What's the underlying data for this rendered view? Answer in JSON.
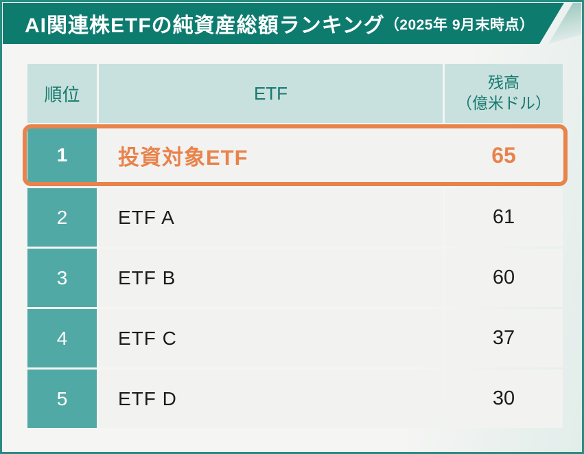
{
  "title_bar": {
    "title": "AI関連株ETFの純資産総額ランキング",
    "date_note": "（2025年 9月末時点）"
  },
  "table": {
    "columns": {
      "rank": "順位",
      "name": "ETF",
      "value_line1": "残高",
      "value_line2": "（億米ドル）"
    },
    "rows": [
      {
        "rank": "1",
        "name": "投資対象ETF",
        "value": "65",
        "highlighted": true
      },
      {
        "rank": "2",
        "name": "ETF A",
        "value": "61",
        "highlighted": false
      },
      {
        "rank": "3",
        "name": "ETF B",
        "value": "60",
        "highlighted": false
      },
      {
        "rank": "4",
        "name": "ETF C",
        "value": "37",
        "highlighted": false
      },
      {
        "rank": "5",
        "name": "ETF D",
        "value": "30",
        "highlighted": false
      }
    ]
  },
  "chart_data": {
    "type": "table",
    "title": "AI関連株ETFの純資産総額ランキング（2025年 9月末時点）",
    "columns": [
      "順位",
      "ETF",
      "残高（億米ドル）"
    ],
    "rows": [
      [
        1,
        "投資対象ETF",
        65
      ],
      [
        2,
        "ETF A",
        61
      ],
      [
        3,
        "ETF B",
        60
      ],
      [
        4,
        "ETF C",
        37
      ],
      [
        5,
        "ETF D",
        30
      ]
    ],
    "highlighted_rank": 1
  },
  "colors": {
    "teal-dark": "#0e7b6f",
    "teal-mid": "#51a9a6",
    "teal-light": "#c8e1de",
    "teal-text": "#17796e",
    "highlight-orange": "#e8834b",
    "row-bg": "#f2f2f1",
    "row-text": "#1c1c1c",
    "frame-border": "#2a8c81"
  }
}
